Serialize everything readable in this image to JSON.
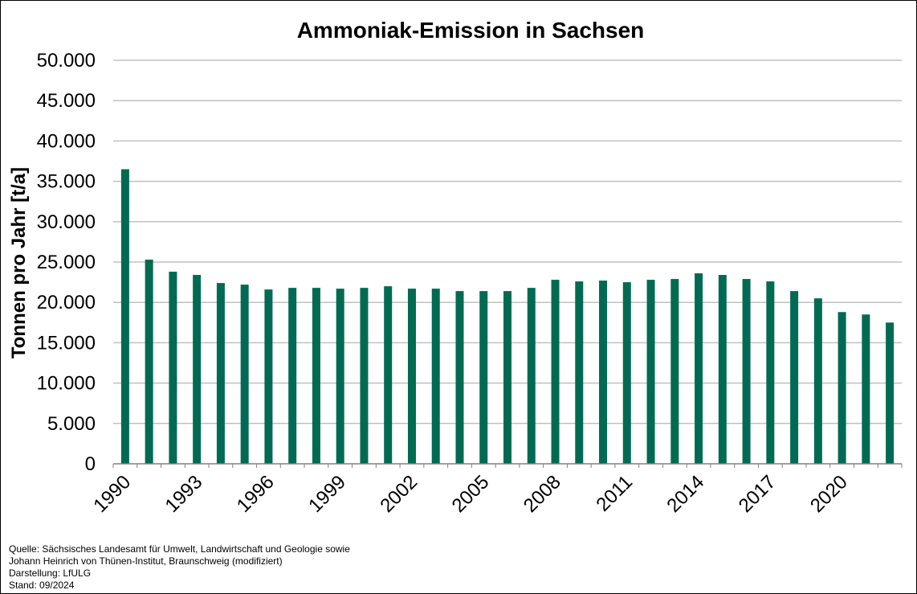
{
  "chart_data": {
    "type": "bar",
    "title": "Ammoniak-Emission in Sachsen",
    "xlabel": "",
    "ylabel": "Tonnen pro Jahr [t/a]",
    "ylim": [
      0,
      50000
    ],
    "yticks": [
      "0",
      "5.000",
      "10.000",
      "15.000",
      "20.000",
      "25.000",
      "30.000",
      "35.000",
      "40.000",
      "45.000",
      "50.000"
    ],
    "grid": true,
    "bar_color": "#006b52",
    "categories": [
      "1990",
      "1991",
      "1992",
      "1993",
      "1994",
      "1995",
      "1996",
      "1997",
      "1998",
      "1999",
      "2000",
      "2001",
      "2002",
      "2003",
      "2004",
      "2005",
      "2006",
      "2007",
      "2008",
      "2009",
      "2010",
      "2011",
      "2012",
      "2013",
      "2014",
      "2015",
      "2016",
      "2017",
      "2018",
      "2019",
      "2020",
      "2021",
      "2022"
    ],
    "xtick_labels": [
      "1990",
      "1993",
      "1996",
      "1999",
      "2002",
      "2005",
      "2008",
      "2011",
      "2014",
      "2017",
      "2020"
    ],
    "values": [
      36500,
      25300,
      23800,
      23400,
      22400,
      22200,
      21600,
      21800,
      21800,
      21700,
      21800,
      22000,
      21700,
      21700,
      21400,
      21400,
      21400,
      21800,
      22800,
      22600,
      22700,
      22500,
      22800,
      22900,
      23600,
      23400,
      22900,
      22600,
      21400,
      20500,
      18800,
      18500,
      17500
    ]
  },
  "source": {
    "lines": [
      "Quelle: Sächsisches Landesamt für Umwelt, Landwirtschaft und Geologie sowie",
      "Johann Heinrich von Thünen-Institut, Braunschweig (modifiziert)",
      "Darstellung: LfULG",
      "Stand: 09/2024"
    ]
  }
}
